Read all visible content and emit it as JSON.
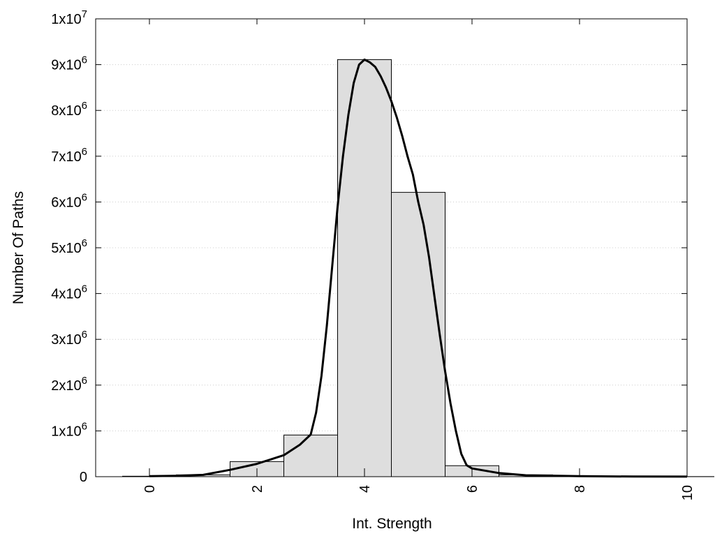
{
  "chart_data": {
    "type": "bar",
    "title": "",
    "xlabel": "Int. Strength",
    "ylabel": "Number Of Paths",
    "xlim": [
      -1,
      10
    ],
    "ylim": [
      0,
      10000000
    ],
    "grid": "horizontal dotted",
    "xticks": [
      {
        "value": 0,
        "label": "0"
      },
      {
        "value": 2,
        "label": "2"
      },
      {
        "value": 4,
        "label": "4"
      },
      {
        "value": 6,
        "label": "6"
      },
      {
        "value": 8,
        "label": "8"
      },
      {
        "value": 10,
        "label": "10"
      }
    ],
    "yticks": [
      {
        "value": 0,
        "mantissa": "0",
        "exponent": ""
      },
      {
        "value": 1000000,
        "mantissa": "1x10",
        "exponent": "6"
      },
      {
        "value": 2000000,
        "mantissa": "2x10",
        "exponent": "6"
      },
      {
        "value": 3000000,
        "mantissa": "3x10",
        "exponent": "6"
      },
      {
        "value": 4000000,
        "mantissa": "4x10",
        "exponent": "6"
      },
      {
        "value": 5000000,
        "mantissa": "5x10",
        "exponent": "6"
      },
      {
        "value": 6000000,
        "mantissa": "6x10",
        "exponent": "6"
      },
      {
        "value": 7000000,
        "mantissa": "7x10",
        "exponent": "6"
      },
      {
        "value": 8000000,
        "mantissa": "8x10",
        "exponent": "6"
      },
      {
        "value": 9000000,
        "mantissa": "9x10",
        "exponent": "6"
      },
      {
        "value": 10000000,
        "mantissa": "1x10",
        "exponent": "7"
      }
    ],
    "bars": [
      {
        "x": 0,
        "value": 10000
      },
      {
        "x": 1,
        "value": 40000
      },
      {
        "x": 2,
        "value": 330000
      },
      {
        "x": 3,
        "value": 910000
      },
      {
        "x": 4,
        "value": 9110000
      },
      {
        "x": 5,
        "value": 6210000
      },
      {
        "x": 6,
        "value": 240000
      },
      {
        "x": 7,
        "value": 40000
      },
      {
        "x": 8,
        "value": 10000
      },
      {
        "x": 9,
        "value": 3000
      },
      {
        "x": 10,
        "value": 2000
      }
    ],
    "bar_width": 1,
    "curve": [
      [
        0,
        10000
      ],
      [
        0.5,
        20000
      ],
      [
        1,
        40000
      ],
      [
        1.5,
        150000
      ],
      [
        2,
        280000
      ],
      [
        2.5,
        470000
      ],
      [
        2.8,
        700000
      ],
      [
        3.0,
        920000
      ],
      [
        3.1,
        1400000
      ],
      [
        3.2,
        2200000
      ],
      [
        3.3,
        3300000
      ],
      [
        3.4,
        4600000
      ],
      [
        3.5,
        5900000
      ],
      [
        3.6,
        7000000
      ],
      [
        3.7,
        7900000
      ],
      [
        3.8,
        8600000
      ],
      [
        3.9,
        9000000
      ],
      [
        4.0,
        9110000
      ],
      [
        4.1,
        9050000
      ],
      [
        4.2,
        8950000
      ],
      [
        4.3,
        8750000
      ],
      [
        4.4,
        8500000
      ],
      [
        4.5,
        8200000
      ],
      [
        4.6,
        7850000
      ],
      [
        4.7,
        7450000
      ],
      [
        4.8,
        7000000
      ],
      [
        4.9,
        6600000
      ],
      [
        5.0,
        6000000
      ],
      [
        5.1,
        5500000
      ],
      [
        5.2,
        4800000
      ],
      [
        5.3,
        3950000
      ],
      [
        5.4,
        3100000
      ],
      [
        5.5,
        2300000
      ],
      [
        5.6,
        1600000
      ],
      [
        5.7,
        1000000
      ],
      [
        5.8,
        500000
      ],
      [
        5.9,
        250000
      ],
      [
        6.0,
        180000
      ],
      [
        6.5,
        80000
      ],
      [
        7.0,
        30000
      ],
      [
        8.0,
        10000
      ],
      [
        9.0,
        3000
      ],
      [
        10.0,
        1000
      ]
    ],
    "colors": {
      "bar_fill": "#dedede",
      "bar_stroke": "#000000",
      "curve": "#000000",
      "grid": "#cccccc"
    }
  }
}
